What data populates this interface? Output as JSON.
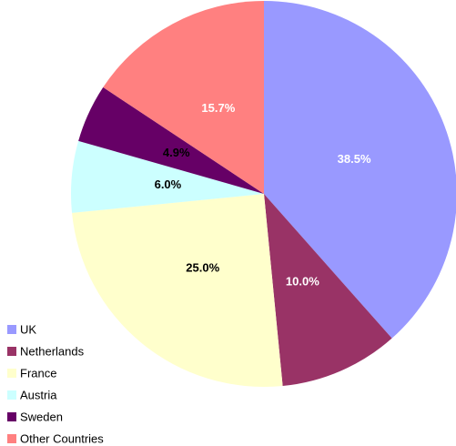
{
  "chart_data": {
    "type": "pie",
    "categories": [
      "UK",
      "Netherlands",
      "France",
      "Austria",
      "Sweden",
      "Other Countries"
    ],
    "values": [
      38.5,
      10.0,
      25.0,
      6.0,
      4.9,
      15.7
    ],
    "value_labels": [
      "38.5%",
      "10.0%",
      "25.0%",
      "6.0%",
      "4.9%",
      "15.7%"
    ],
    "colors": [
      "#9999ff",
      "#993366",
      "#ffffcc",
      "#ccffff",
      "#660066",
      "#ff8080"
    ],
    "label_colors": [
      "#ffffff",
      "#ffffff",
      "#000000",
      "#000000",
      "#000000",
      "#ffffff"
    ],
    "legend": "lower left"
  }
}
